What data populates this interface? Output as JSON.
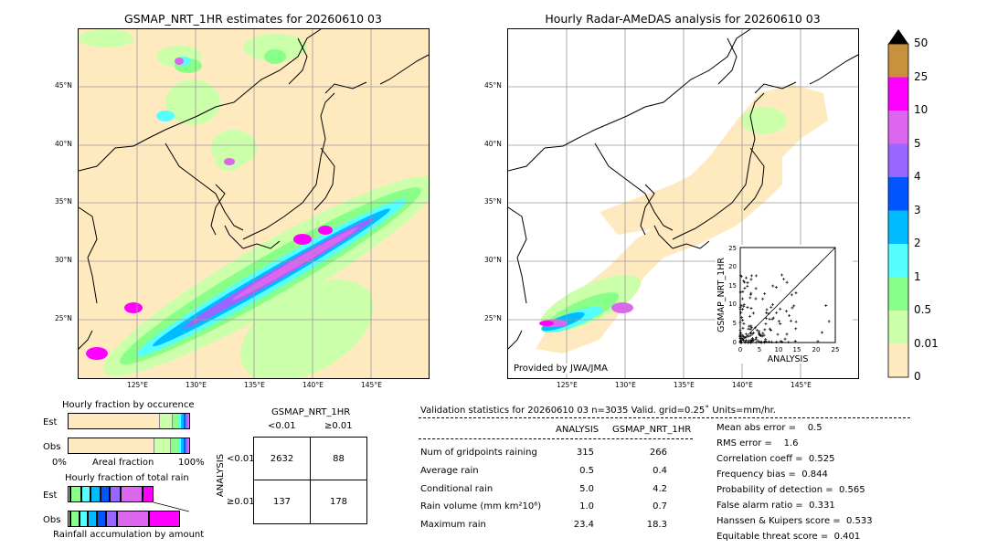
{
  "left_map": {
    "title": "GSMAP_NRT_1HR estimates for 20260610 03",
    "lat_labels": [
      "45°N",
      "40°N",
      "35°N",
      "30°N",
      "25°N"
    ],
    "lon_labels": [
      "125°E",
      "130°E",
      "135°E",
      "140°E",
      "145°E"
    ]
  },
  "right_map": {
    "title": "Hourly Radar-AMeDAS analysis for 20260610 03",
    "lat_labels": [
      "45°N",
      "40°N",
      "35°N",
      "30°N",
      "25°N"
    ],
    "lon_labels": [
      "125°E",
      "130°E",
      "135°E",
      "140°E",
      "145°E"
    ],
    "credit": "Provided by JWA/JMA"
  },
  "colorbar": {
    "labels": [
      "50",
      "25",
      "10",
      "5",
      "4",
      "3",
      "2",
      "1",
      "0.5",
      "0.01",
      "0"
    ],
    "colors": [
      "#c8913c",
      "#ff00ff",
      "#dd66ee",
      "#9966ff",
      "#0055ff",
      "#00bbff",
      "#55ffff",
      "#88ff88",
      "#ccffaa",
      "#ffeac0"
    ]
  },
  "inset_scatter": {
    "xlabel": "ANALYSIS",
    "ylabel": "GSMAP_NRT_1HR",
    "ticks": [
      "0",
      "5",
      "10",
      "15",
      "20",
      "25"
    ]
  },
  "fraction_occurrence": {
    "title": "Hourly fraction by occurence",
    "row_labels": [
      "Est",
      "Obs"
    ],
    "axis_left": "0%",
    "axis_mid": "Areal fraction",
    "axis_right": "100%"
  },
  "fraction_total": {
    "title": "Hourly fraction of total rain",
    "row_labels": [
      "Est",
      "Obs"
    ],
    "footer": "Rainfall accumulation by amount"
  },
  "contingency": {
    "title": "GSMAP_NRT_1HR",
    "col_labels": [
      "<0.01",
      "≥0.01"
    ],
    "row_axis": "ANALYSIS",
    "row_labels": [
      "<0.01",
      "≥0.01"
    ],
    "cells": [
      [
        "2632",
        "88"
      ],
      [
        "137",
        "178"
      ]
    ]
  },
  "validation": {
    "header": "Validation statistics for 20260610 03  n=3035 Valid. grid=0.25˚ Units=mm/hr.",
    "col_analysis": "ANALYSIS",
    "col_gsmap": "GSMAP_NRT_1HR",
    "rows": [
      {
        "label": "Num of gridpoints raining",
        "a": "315",
        "g": "266"
      },
      {
        "label": "Average rain",
        "a": "0.5",
        "g": "0.4"
      },
      {
        "label": "Conditional rain",
        "a": "5.0",
        "g": "4.2"
      },
      {
        "label": "Rain volume (mm km²10⁶)",
        "a": "1.0",
        "g": "0.7"
      },
      {
        "label": "Maximum rain",
        "a": "23.4",
        "g": "18.3"
      }
    ],
    "scores": [
      "Mean abs error =    0.5",
      "RMS error =    1.6",
      "Correlation coeff =  0.525",
      "Frequency bias =  0.844",
      "Probability of detection =  0.565",
      "False alarm ratio =  0.331",
      "Hanssen & Kuipers score =  0.533",
      "Equitable threat score =  0.401"
    ]
  },
  "chart_data": [
    {
      "type": "heatmap",
      "title": "GSMAP_NRT_1HR estimates for 20260610 03",
      "xlim_lon": [
        120,
        150
      ],
      "ylim_lat": [
        20,
        50
      ]
    },
    {
      "type": "heatmap",
      "title": "Hourly Radar-AMeDAS analysis for 20260610 03",
      "xlim_lon": [
        120,
        150
      ],
      "ylim_lat": [
        20,
        50
      ]
    },
    {
      "type": "scatter",
      "xlabel": "ANALYSIS",
      "ylabel": "GSMAP_NRT_1HR",
      "xlim": [
        0,
        25
      ],
      "ylim": [
        0,
        25
      ]
    },
    {
      "type": "table",
      "title": "GSMAP_NRT_1HR",
      "rows": [
        "<0.01",
        "≥0.01"
      ],
      "columns": [
        "<0.01",
        "≥0.01"
      ],
      "values": [
        [
          2632,
          88
        ],
        [
          137,
          178
        ]
      ]
    }
  ]
}
